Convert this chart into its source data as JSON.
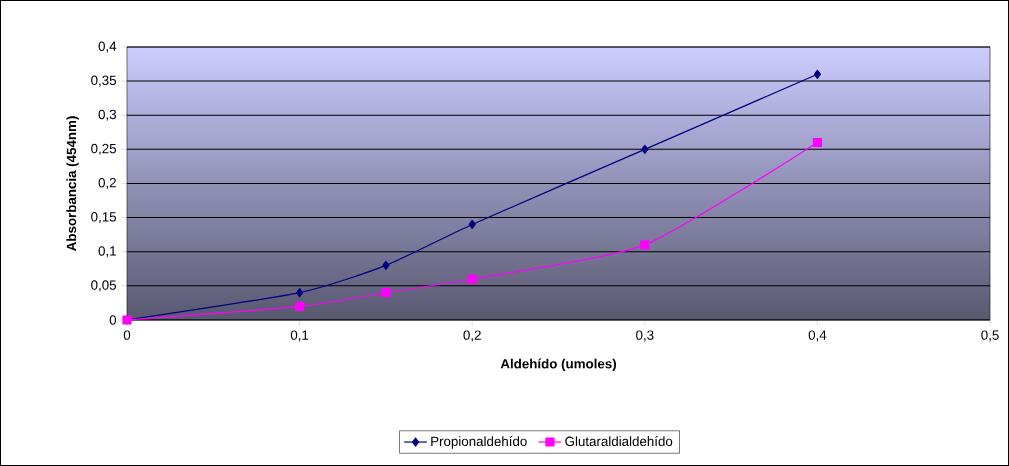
{
  "chart_data": {
    "type": "line",
    "xlabel": "Aldehído (umoles)",
    "ylabel": "Absorbancia (454nm)",
    "series": [
      {
        "name": "Propionaldehído",
        "color": "#000080",
        "marker": "diamond",
        "x": [
          0,
          0.1,
          0.15,
          0.2,
          0.3,
          0.4
        ],
        "values": [
          0,
          0.04,
          0.08,
          0.14,
          0.25,
          0.36
        ]
      },
      {
        "name": "Glutaraldialdehído",
        "color": "#ff00ff",
        "marker": "square",
        "x": [
          0,
          0.1,
          0.15,
          0.2,
          0.3,
          0.4
        ],
        "values": [
          0,
          0.02,
          0.04,
          0.06,
          0.11,
          0.26
        ]
      }
    ],
    "xlim": [
      0,
      0.5
    ],
    "ylim": [
      0,
      0.4
    ],
    "xticks": [
      0,
      {
        "value": 0.1,
        "label": "0,1"
      },
      {
        "value": 0.2,
        "label": "0,2"
      },
      {
        "value": 0.3,
        "label": "0,3"
      },
      {
        "value": 0.4,
        "label": "0,4"
      },
      {
        "value": 0.5,
        "label": "0,5"
      }
    ],
    "yticks": [
      0,
      {
        "value": 0.05,
        "label": "0,05"
      },
      {
        "value": 0.1,
        "label": "0,1"
      },
      {
        "value": 0.15,
        "label": "0,15"
      },
      {
        "value": 0.2,
        "label": "0,2"
      },
      {
        "value": 0.25,
        "label": "0,25"
      },
      {
        "value": 0.3,
        "label": "0,3"
      },
      {
        "value": 0.35,
        "label": "0,35"
      },
      {
        "value": 0.4,
        "label": "0,4"
      }
    ],
    "grid": "y",
    "legend": "bottom",
    "line_style": "solid"
  }
}
